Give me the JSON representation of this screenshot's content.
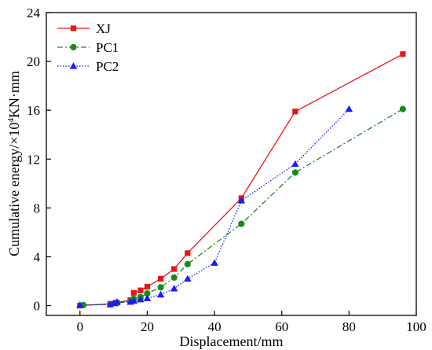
{
  "chart_data": {
    "type": "line",
    "xlabel": "Displacement/mm",
    "ylabel_parts": [
      "Cumulative energy/×10",
      "4",
      "KN·mm"
    ],
    "xlim": [
      -10,
      100
    ],
    "ylim": [
      -0.8,
      24
    ],
    "x_ticks": [
      0,
      20,
      40,
      60,
      80,
      100
    ],
    "y_ticks": [
      0,
      4,
      8,
      12,
      16,
      20,
      24
    ],
    "legend_position": "top-left",
    "series": [
      {
        "name": "XJ",
        "color": "#e8161b",
        "dash": "solid",
        "marker": "square",
        "x": [
          0,
          9,
          11,
          15,
          16,
          18,
          20,
          24,
          28,
          32,
          48,
          64,
          96
        ],
        "y": [
          0,
          0.15,
          0.25,
          0.45,
          1.05,
          1.25,
          1.55,
          2.2,
          3.0,
          4.3,
          8.8,
          15.9,
          20.6
        ]
      },
      {
        "name": "PC1",
        "color": "#1a8a1a",
        "dash": "dashdot",
        "marker": "circle",
        "x": [
          1,
          9,
          11,
          15,
          16,
          18,
          20,
          24,
          28,
          32,
          48,
          64,
          96
        ],
        "y": [
          0.05,
          0.1,
          0.2,
          0.35,
          0.55,
          0.7,
          1.0,
          1.5,
          2.3,
          3.4,
          6.7,
          10.9,
          16.1
        ]
      },
      {
        "name": "PC2",
        "color": "#1a1aff",
        "dash": "dotted",
        "marker": "triangle",
        "x": [
          0,
          9,
          10,
          11,
          15,
          16,
          18,
          20,
          24,
          28,
          32,
          40,
          48,
          64,
          80
        ],
        "y": [
          0.05,
          0.1,
          0.2,
          0.3,
          0.3,
          0.4,
          0.5,
          0.6,
          0.9,
          1.4,
          2.2,
          3.5,
          8.6,
          11.6,
          16.1
        ]
      }
    ]
  }
}
